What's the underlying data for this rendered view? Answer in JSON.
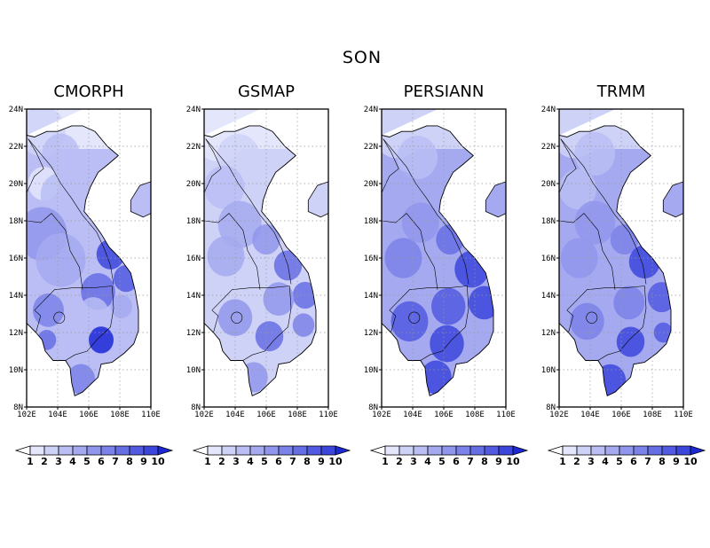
{
  "figure": {
    "title": "SON"
  },
  "panels": [
    {
      "title": "CMORPH"
    },
    {
      "title": "GSMAP"
    },
    {
      "title": "PERSIANN"
    },
    {
      "title": "TRMM"
    }
  ],
  "map": {
    "lon_range": [
      102,
      110
    ],
    "lat_range": [
      8,
      24
    ],
    "lon_ticks": [
      "102E",
      "104E",
      "106E",
      "108E",
      "110E"
    ],
    "lat_ticks": [
      "8N",
      "10N",
      "12N",
      "14N",
      "16N",
      "18N",
      "20N",
      "22N",
      "24N"
    ],
    "gridlines": "dotted"
  },
  "colorbar": {
    "labels": [
      "1",
      "2",
      "3",
      "4",
      "5",
      "6",
      "7",
      "8",
      "9",
      "10"
    ],
    "colors": [
      "#ffffff",
      "#e4e6fb",
      "#cfd2f7",
      "#babef4",
      "#a5aaf0",
      "#9096ec",
      "#7b82e8",
      "#666ee4",
      "#515ae0",
      "#3c46dc",
      "#1c28d6"
    ]
  },
  "legend_colors": {
    "ocean": "#ffffff",
    "border": "#000000"
  }
}
